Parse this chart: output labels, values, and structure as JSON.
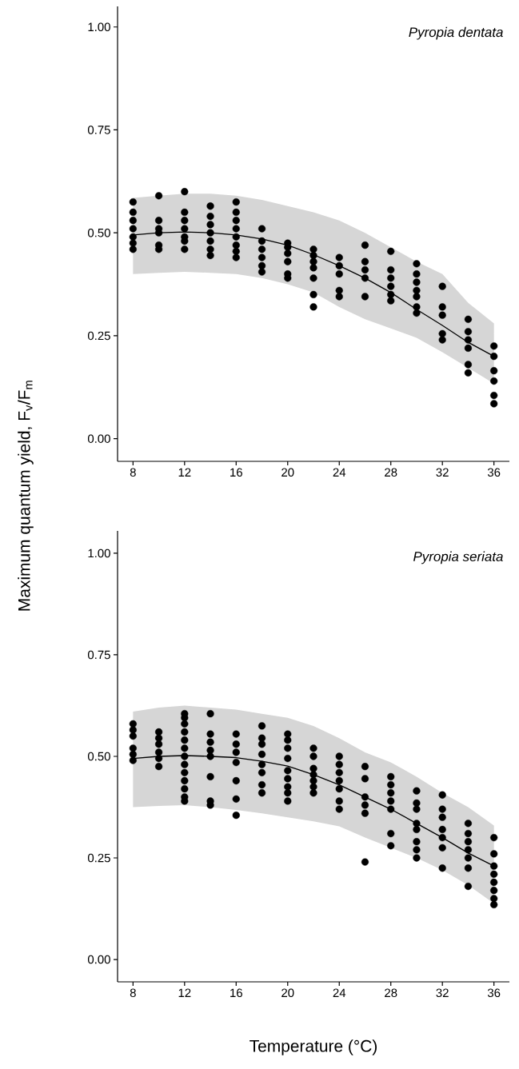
{
  "chart_data": [
    {
      "type": "scatter",
      "title": "Pyropia dentata",
      "ylabel": "Maximum quantum yield, F$_{v}$/F$_{m}$",
      "xlim": [
        6.8,
        37.2
      ],
      "ylim": [
        -0.055,
        1.05
      ],
      "xticks": [
        8,
        12,
        16,
        20,
        24,
        28,
        32,
        36
      ],
      "yticks": [
        {
          "value": 0,
          "label": "0.00"
        },
        {
          "value": 0.25,
          "label": "0.25"
        },
        {
          "value": 0.5,
          "label": "0.50"
        },
        {
          "value": 0.75,
          "label": "0.75"
        },
        {
          "value": 1,
          "label": "1.00"
        }
      ],
      "series": [
        {
          "color": "#000000",
          "marker": "circle",
          "x": [
            8,
            8,
            8,
            8,
            8,
            8,
            8,
            10,
            10,
            10,
            10,
            10,
            10,
            12,
            12,
            12,
            12,
            12,
            12,
            12,
            14,
            14,
            14,
            14,
            14,
            14,
            14,
            16,
            16,
            16,
            16,
            16,
            16,
            16,
            16,
            18,
            18,
            18,
            18,
            18,
            18,
            20,
            20,
            20,
            20,
            20,
            20,
            22,
            22,
            22,
            22,
            22,
            22,
            22,
            24,
            24,
            24,
            24,
            24,
            26,
            26,
            26,
            26,
            26,
            28,
            28,
            28,
            28,
            28,
            28,
            30,
            30,
            30,
            30,
            30,
            30,
            30,
            32,
            32,
            32,
            32,
            32,
            34,
            34,
            34,
            34,
            34,
            34,
            36,
            36,
            36,
            36,
            36,
            36
          ],
          "values": [
            0.575,
            0.55,
            0.53,
            0.51,
            0.49,
            0.475,
            0.46,
            0.59,
            0.53,
            0.51,
            0.5,
            0.47,
            0.46,
            0.6,
            0.55,
            0.53,
            0.51,
            0.49,
            0.48,
            0.46,
            0.565,
            0.54,
            0.52,
            0.5,
            0.48,
            0.46,
            0.445,
            0.575,
            0.55,
            0.53,
            0.51,
            0.49,
            0.47,
            0.455,
            0.44,
            0.51,
            0.48,
            0.46,
            0.44,
            0.42,
            0.405,
            0.475,
            0.465,
            0.45,
            0.43,
            0.4,
            0.39,
            0.46,
            0.445,
            0.43,
            0.415,
            0.39,
            0.35,
            0.32,
            0.44,
            0.42,
            0.4,
            0.36,
            0.345,
            0.47,
            0.43,
            0.41,
            0.39,
            0.345,
            0.455,
            0.41,
            0.39,
            0.37,
            0.35,
            0.335,
            0.425,
            0.4,
            0.38,
            0.36,
            0.345,
            0.32,
            0.305,
            0.37,
            0.32,
            0.3,
            0.255,
            0.24,
            0.29,
            0.26,
            0.24,
            0.22,
            0.18,
            0.16,
            0.225,
            0.2,
            0.165,
            0.14,
            0.105,
            0.085
          ]
        },
        {
          "type": "line",
          "color": "#000000",
          "line_style": "solid",
          "x": [
            8,
            10,
            12,
            14,
            16,
            18,
            20,
            22,
            24,
            26,
            28,
            30,
            32,
            34,
            36
          ],
          "values": [
            0.495,
            0.5,
            0.502,
            0.5,
            0.495,
            0.485,
            0.47,
            0.447,
            0.42,
            0.39,
            0.355,
            0.314,
            0.275,
            0.234,
            0.2
          ],
          "lower": [
            0.4,
            0.403,
            0.405,
            0.403,
            0.4,
            0.39,
            0.375,
            0.355,
            0.32,
            0.29,
            0.268,
            0.245,
            0.21,
            0.172,
            0.134
          ],
          "upper": [
            0.585,
            0.59,
            0.595,
            0.595,
            0.59,
            0.58,
            0.565,
            0.55,
            0.53,
            0.5,
            0.465,
            0.43,
            0.4,
            0.33,
            0.28
          ]
        }
      ]
    },
    {
      "type": "scatter",
      "title": "Pyropia seriata",
      "xlabel": "Temperature (°C)",
      "xlim": [
        6.8,
        37.2
      ],
      "ylim": [
        -0.055,
        1.055
      ],
      "xticks": [
        8,
        12,
        16,
        20,
        24,
        28,
        32,
        36
      ],
      "yticks": [
        {
          "value": 0,
          "label": "0.00"
        },
        {
          "value": 0.25,
          "label": "0.25"
        },
        {
          "value": 0.5,
          "label": "0.50"
        },
        {
          "value": 0.75,
          "label": "0.75"
        },
        {
          "value": 1,
          "label": "1.00"
        }
      ],
      "series": [
        {
          "color": "#000000",
          "marker": "circle",
          "x": [
            8,
            8,
            8,
            8,
            8,
            8,
            10,
            10,
            10,
            10,
            10,
            10,
            12,
            12,
            12,
            12,
            12,
            12,
            12,
            12,
            12,
            12,
            12,
            12,
            12,
            14,
            14,
            14,
            14,
            14,
            14,
            14,
            14,
            16,
            16,
            16,
            16,
            16,
            16,
            16,
            18,
            18,
            18,
            18,
            18,
            18,
            18,
            18,
            20,
            20,
            20,
            20,
            20,
            20,
            20,
            20,
            20,
            22,
            22,
            22,
            22,
            22,
            22,
            22,
            24,
            24,
            24,
            24,
            24,
            24,
            24,
            26,
            26,
            26,
            26,
            26,
            26,
            28,
            28,
            28,
            28,
            28,
            28,
            28,
            30,
            30,
            30,
            30,
            30,
            30,
            30,
            30,
            32,
            32,
            32,
            32,
            32,
            32,
            32,
            34,
            34,
            34,
            34,
            34,
            34,
            34,
            36,
            36,
            36,
            36,
            36,
            36,
            36,
            36
          ],
          "values": [
            0.58,
            0.565,
            0.55,
            0.52,
            0.505,
            0.49,
            0.56,
            0.545,
            0.53,
            0.51,
            0.495,
            0.475,
            0.605,
            0.595,
            0.58,
            0.56,
            0.54,
            0.52,
            0.5,
            0.48,
            0.46,
            0.44,
            0.42,
            0.4,
            0.39,
            0.605,
            0.555,
            0.535,
            0.515,
            0.5,
            0.45,
            0.39,
            0.38,
            0.555,
            0.53,
            0.51,
            0.485,
            0.44,
            0.395,
            0.355,
            0.575,
            0.545,
            0.53,
            0.505,
            0.48,
            0.46,
            0.43,
            0.41,
            0.555,
            0.54,
            0.52,
            0.495,
            0.465,
            0.445,
            0.425,
            0.41,
            0.39,
            0.52,
            0.5,
            0.47,
            0.455,
            0.44,
            0.425,
            0.41,
            0.5,
            0.48,
            0.46,
            0.44,
            0.42,
            0.39,
            0.37,
            0.475,
            0.445,
            0.4,
            0.38,
            0.36,
            0.24,
            0.45,
            0.43,
            0.41,
            0.39,
            0.37,
            0.31,
            0.28,
            0.415,
            0.385,
            0.37,
            0.335,
            0.32,
            0.29,
            0.27,
            0.25,
            0.405,
            0.37,
            0.35,
            0.32,
            0.3,
            0.275,
            0.225,
            0.335,
            0.31,
            0.29,
            0.27,
            0.25,
            0.225,
            0.18,
            0.3,
            0.26,
            0.23,
            0.21,
            0.19,
            0.17,
            0.15,
            0.135
          ]
        },
        {
          "type": "line",
          "color": "#000000",
          "line_style": "solid",
          "x": [
            8,
            10,
            12,
            14,
            16,
            18,
            20,
            22,
            24,
            26,
            28,
            30,
            32,
            34,
            36
          ],
          "values": [
            0.495,
            0.5,
            0.502,
            0.5,
            0.497,
            0.488,
            0.476,
            0.455,
            0.43,
            0.4,
            0.37,
            0.335,
            0.3,
            0.262,
            0.23
          ],
          "lower": [
            0.375,
            0.378,
            0.38,
            0.375,
            0.368,
            0.36,
            0.35,
            0.34,
            0.328,
            0.3,
            0.275,
            0.25,
            0.22,
            0.183,
            0.138
          ],
          "upper": [
            0.61,
            0.62,
            0.625,
            0.62,
            0.615,
            0.605,
            0.595,
            0.575,
            0.545,
            0.51,
            0.485,
            0.45,
            0.41,
            0.375,
            0.33
          ]
        }
      ]
    }
  ]
}
